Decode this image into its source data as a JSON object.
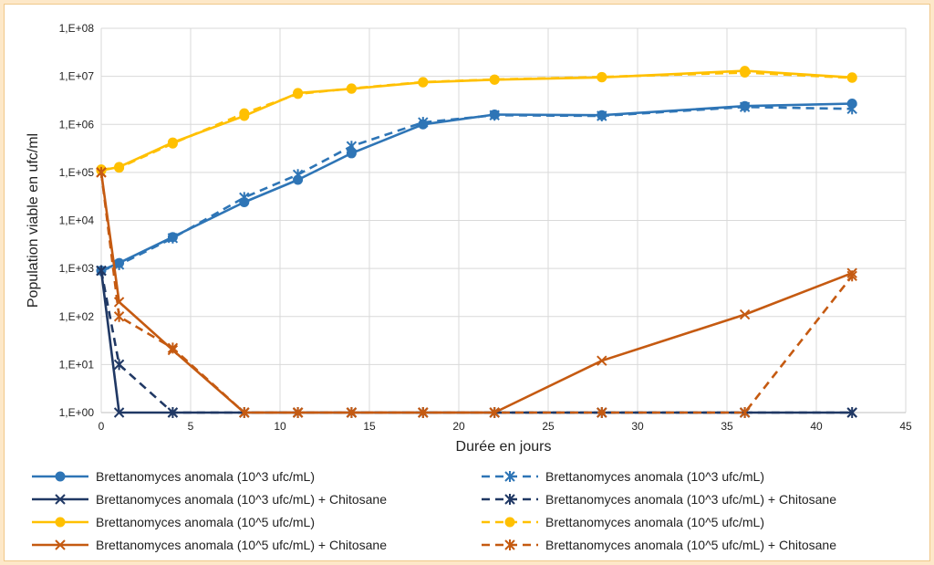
{
  "chart_data": {
    "type": "line",
    "xlabel": "Durée en jours",
    "ylabel": "Population viable en ufc/ml",
    "y_scale": "log",
    "xlim": [
      0,
      45
    ],
    "ylim": [
      1,
      100000000
    ],
    "x_ticks": [
      "0",
      "5",
      "10",
      "15",
      "20",
      "25",
      "30",
      "35",
      "40",
      "45"
    ],
    "y_ticks": [
      "1,E+00",
      "1,E+01",
      "1,E+02",
      "1,E+03",
      "1,E+04",
      "1,E+05",
      "1,E+06",
      "1,E+07",
      "1,E+08"
    ],
    "grid": true,
    "legend_position": "bottom",
    "series": [
      {
        "name": "Brettanomyces anomala (10^3 ufc/mL)",
        "color": "#2e75b6",
        "dash": "solid",
        "marker": "circle",
        "x": [
          0,
          1,
          4,
          8,
          11,
          14,
          18,
          22,
          28,
          36,
          42
        ],
        "y": [
          900,
          1300,
          4500,
          24000,
          70000,
          250000,
          1000000,
          1600000,
          1550000,
          2400000,
          2700000
        ]
      },
      {
        "name": "Brettanomyces anomala (10^3 ufc/mL)",
        "color": "#2e75b6",
        "dash": "dashed",
        "marker": "star",
        "x": [
          0,
          1,
          4,
          8,
          11,
          14,
          18,
          22,
          28,
          36,
          42
        ],
        "y": [
          900,
          1200,
          4300,
          30000,
          90000,
          350000,
          1100000,
          1550000,
          1500000,
          2300000,
          2100000
        ]
      },
      {
        "name": "Brettanomyces anomala (10^3 ufc/mL) + Chitosane",
        "color": "#203864",
        "dash": "solid",
        "marker": "x",
        "x": [
          0,
          1,
          4,
          8,
          11,
          14,
          18,
          22,
          28,
          36,
          42
        ],
        "y": [
          900,
          1,
          1,
          1,
          1,
          1,
          1,
          1,
          1,
          1,
          1
        ]
      },
      {
        "name": "Brettanomyces anomala (10^3 ufc/mL) + Chitosane",
        "color": "#203864",
        "dash": "dashed",
        "marker": "star",
        "x": [
          0,
          1,
          4,
          8,
          11,
          14,
          18,
          22,
          28,
          36,
          42
        ],
        "y": [
          900,
          10,
          1,
          1,
          1,
          1,
          1,
          1,
          1,
          1,
          1
        ]
      },
      {
        "name": "Brettanomyces anomala (10^5 ufc/mL)",
        "color": "#ffc000",
        "dash": "solid",
        "marker": "circle",
        "x": [
          0,
          1,
          4,
          8,
          11,
          14,
          18,
          22,
          28,
          36,
          42
        ],
        "y": [
          110000,
          130000,
          420000,
          1500000,
          4500000,
          5500000,
          7500000,
          8500000,
          9500000,
          13000000,
          9500000
        ]
      },
      {
        "name": "Brettanomyces anomala (10^5 ufc/mL)",
        "color": "#ffc000",
        "dash": "dashed",
        "marker": "circle",
        "x": [
          0,
          1,
          4,
          8,
          11,
          14,
          18,
          22,
          28,
          36,
          42
        ],
        "y": [
          115000,
          125000,
          400000,
          1700000,
          4300000,
          5600000,
          7600000,
          8600000,
          9700000,
          12000000,
          9300000
        ]
      },
      {
        "name": "Brettanomyces anomala (10^5 ufc/mL) + Chitosane",
        "color": "#c55a11",
        "dash": "solid",
        "marker": "x",
        "x": [
          0,
          1,
          4,
          8,
          11,
          14,
          18,
          22,
          28,
          36,
          42
        ],
        "y": [
          100000,
          200,
          20,
          1,
          1,
          1,
          1,
          1,
          12,
          110,
          800
        ]
      },
      {
        "name": "Brettanomyces anomala (10^5 ufc/mL) + Chitosane",
        "color": "#c55a11",
        "dash": "dashed",
        "marker": "star",
        "x": [
          0,
          1,
          4,
          8,
          11,
          14,
          18,
          22,
          28,
          36,
          42
        ],
        "y": [
          100000,
          100,
          22,
          1,
          1,
          1,
          1,
          1,
          1,
          1,
          700
        ]
      }
    ]
  }
}
